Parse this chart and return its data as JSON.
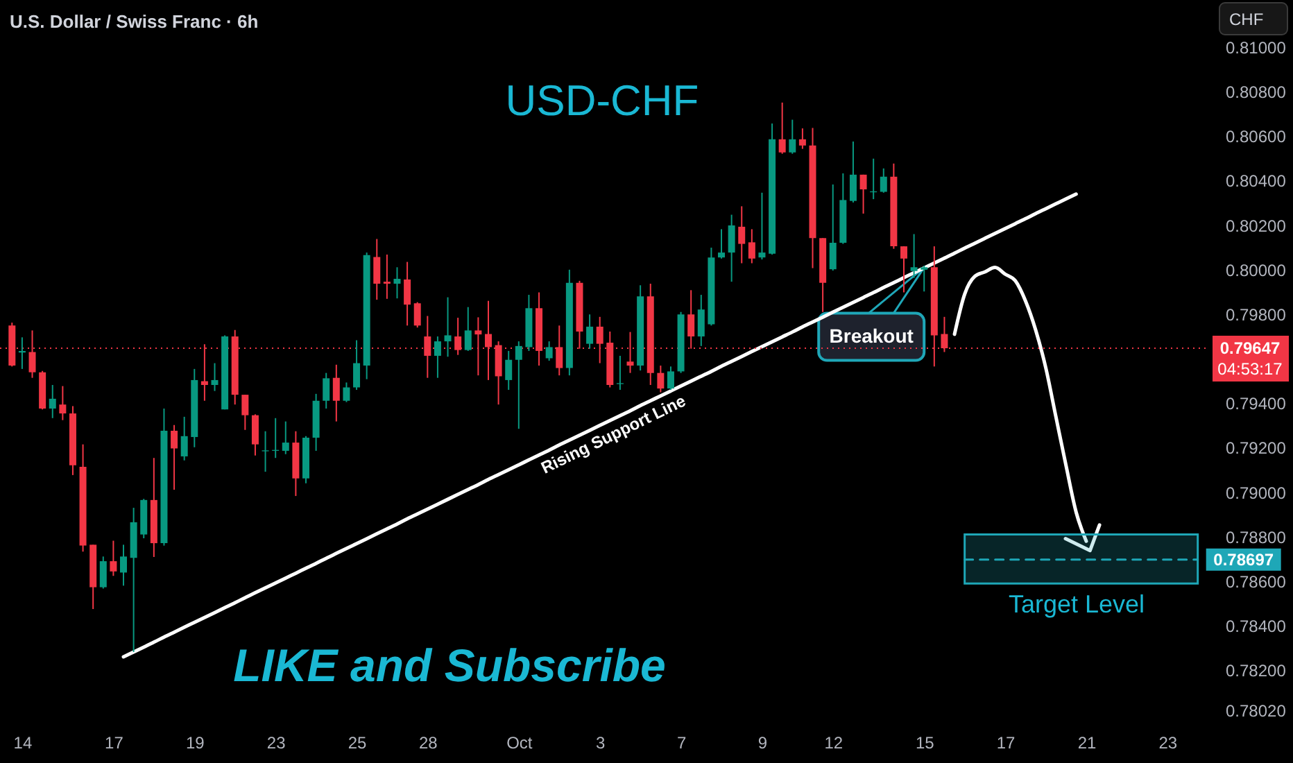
{
  "chart_data": {
    "type": "candlestick",
    "title": "USD-CHF",
    "subtitle": "U.S. Dollar / Swiss Franc · 6h",
    "ylabel": "CHF",
    "categories": [
      null,
      "14",
      null,
      null,
      null,
      null,
      null,
      null,
      null,
      null,
      "17",
      null,
      null,
      null,
      null,
      null,
      null,
      null,
      "19",
      null,
      null,
      null,
      null,
      null,
      null,
      null,
      "23",
      null,
      null,
      null,
      null,
      null,
      null,
      null,
      "25",
      null,
      null,
      null,
      null,
      null,
      null,
      "28",
      null,
      null,
      null,
      null,
      null,
      null,
      null,
      null,
      "Oct",
      null,
      null,
      null,
      null,
      null,
      null,
      null,
      "3",
      null,
      null,
      null,
      null,
      null,
      null,
      null,
      "7",
      null,
      null,
      null,
      null,
      null,
      null,
      null,
      "9",
      null,
      null,
      null,
      null,
      null,
      null,
      "12",
      null,
      null,
      null,
      null,
      null,
      null,
      null,
      null,
      "15",
      null,
      null,
      null,
      null,
      null,
      null,
      null,
      "17",
      null,
      null,
      null,
      null,
      null,
      null,
      null,
      "21",
      null,
      null,
      null,
      null,
      null,
      null,
      null,
      "23",
      null,
      null,
      null
    ],
    "ohlc": [
      [
        0.79749,
        0.79762,
        0.79565,
        0.79569
      ],
      [
        0.79628,
        0.79696,
        0.79554,
        0.79635
      ],
      [
        0.7963,
        0.79727,
        0.79514,
        0.79539
      ],
      [
        0.79539,
        0.79545,
        0.79372,
        0.79376
      ],
      [
        0.79376,
        0.79482,
        0.79333,
        0.7942
      ],
      [
        0.79394,
        0.79477,
        0.79324,
        0.79354
      ],
      [
        0.79354,
        0.79387,
        0.79077,
        0.79121
      ],
      [
        0.79114,
        0.79215,
        0.78733,
        0.7876
      ],
      [
        0.78764,
        0.78764,
        0.78475,
        0.78573
      ],
      [
        0.78573,
        0.78711,
        0.78567,
        0.7869
      ],
      [
        0.7869,
        0.78782,
        0.78624,
        0.78644
      ],
      [
        0.78639,
        0.78764,
        0.7858,
        0.78711
      ],
      [
        0.78705,
        0.7893,
        0.78282,
        0.78865
      ],
      [
        0.7881,
        0.7897,
        0.78793,
        0.78965
      ],
      [
        0.78965,
        0.79154,
        0.78709,
        0.78771
      ],
      [
        0.78771,
        0.79376,
        0.7876,
        0.79276
      ],
      [
        0.79276,
        0.79302,
        0.79011,
        0.79197
      ],
      [
        0.79161,
        0.79339,
        0.79143,
        0.79252
      ],
      [
        0.79248,
        0.79554,
        0.79202,
        0.79504
      ],
      [
        0.79499,
        0.79665,
        0.79411,
        0.79482
      ],
      [
        0.79482,
        0.7958,
        0.79455,
        0.79504
      ],
      [
        0.79372,
        0.79705,
        0.79372,
        0.797
      ],
      [
        0.797,
        0.79729,
        0.79394,
        0.79438
      ],
      [
        0.79438,
        0.79438,
        0.7928,
        0.79346
      ],
      [
        0.79346,
        0.7935,
        0.79165,
        0.79215
      ],
      [
        0.79184,
        0.79274,
        0.79092,
        0.79188
      ],
      [
        0.79186,
        0.79333,
        0.79154,
        0.7919
      ],
      [
        0.79186,
        0.79318,
        0.79171,
        0.79223
      ],
      [
        0.79223,
        0.79274,
        0.78983,
        0.79062
      ],
      [
        0.79062,
        0.79252,
        0.7904,
        0.79245
      ],
      [
        0.79245,
        0.79442,
        0.79186,
        0.79411
      ],
      [
        0.79411,
        0.79536,
        0.79376,
        0.79512
      ],
      [
        0.79514,
        0.79573,
        0.79318,
        0.79411
      ],
      [
        0.79411,
        0.79493,
        0.79405,
        0.79471
      ],
      [
        0.79471,
        0.79683,
        0.7946,
        0.7958
      ],
      [
        0.79569,
        0.80077,
        0.79508,
        0.80066
      ],
      [
        0.80057,
        0.80138,
        0.79865,
        0.79937
      ],
      [
        0.79946,
        0.80068,
        0.79869,
        0.79937
      ],
      [
        0.79937,
        0.80011,
        0.79871,
        0.79959
      ],
      [
        0.79956,
        0.80035,
        0.79749,
        0.79843
      ],
      [
        0.79849,
        0.79854,
        0.7974,
        0.79749
      ],
      [
        0.797,
        0.79792,
        0.79514,
        0.79613
      ],
      [
        0.79613,
        0.797,
        0.79514,
        0.79678
      ],
      [
        0.79678,
        0.79876,
        0.79609,
        0.79705
      ],
      [
        0.797,
        0.79784,
        0.79617,
        0.79639
      ],
      [
        0.79639,
        0.79832,
        0.79635,
        0.79727
      ],
      [
        0.79727,
        0.79786,
        0.79525,
        0.79709
      ],
      [
        0.79711,
        0.7986,
        0.79504,
        0.79652
      ],
      [
        0.79661,
        0.79678,
        0.79394,
        0.79521
      ],
      [
        0.79504,
        0.79635,
        0.7946,
        0.79595
      ],
      [
        0.79595,
        0.79678,
        0.79285,
        0.79657
      ],
      [
        0.79652,
        0.79887,
        0.79635,
        0.79827
      ],
      [
        0.79827,
        0.79898,
        0.79569,
        0.79635
      ],
      [
        0.79602,
        0.79678,
        0.79591,
        0.79652
      ],
      [
        0.79652,
        0.79749,
        0.79525,
        0.79558
      ],
      [
        0.79558,
        0.8,
        0.79525,
        0.79941
      ],
      [
        0.79941,
        0.7995,
        0.79645,
        0.79722
      ],
      [
        0.79667,
        0.79799,
        0.79645,
        0.79744
      ],
      [
        0.79744,
        0.79788,
        0.7958,
        0.79667
      ],
      [
        0.79672,
        0.79722,
        0.79471,
        0.79482
      ],
      [
        0.79486,
        0.79613,
        0.7946,
        0.7949
      ],
      [
        0.79587,
        0.7972,
        0.79536,
        0.79569
      ],
      [
        0.79569,
        0.7993,
        0.79547,
        0.7988
      ],
      [
        0.7988,
        0.79937,
        0.79482,
        0.79536
      ],
      [
        0.79536,
        0.79569,
        0.79449,
        0.79466
      ],
      [
        0.79466,
        0.79565,
        0.7946,
        0.79543
      ],
      [
        0.79543,
        0.7981,
        0.79536,
        0.79799
      ],
      [
        0.79799,
        0.79908,
        0.79645,
        0.797
      ],
      [
        0.797,
        0.79887,
        0.79657,
        0.79821
      ],
      [
        0.79755,
        0.80099,
        0.79749,
        0.80055
      ],
      [
        0.80055,
        0.80182,
        0.8005,
        0.80077
      ],
      [
        0.80077,
        0.80247,
        0.79946,
        0.80199
      ],
      [
        0.80193,
        0.80285,
        0.80029,
        0.80116
      ],
      [
        0.80123,
        0.80182,
        0.80029,
        0.8005
      ],
      [
        0.80055,
        0.80346,
        0.80046,
        0.80077
      ],
      [
        0.80072,
        0.80657,
        0.80068,
        0.80586
      ],
      [
        0.80586,
        0.80751,
        0.80521,
        0.80527
      ],
      [
        0.80527,
        0.80674,
        0.80521,
        0.80586
      ],
      [
        0.80586,
        0.80635,
        0.80543,
        0.80558
      ],
      [
        0.80558,
        0.80637,
        0.80007,
        0.80142
      ],
      [
        0.80142,
        0.80142,
        0.7981,
        0.79941
      ],
      [
        0.80002,
        0.80383,
        0.79996,
        0.80121
      ],
      [
        0.80121,
        0.80433,
        0.80116,
        0.80313
      ],
      [
        0.80309,
        0.80576,
        0.80302,
        0.80427
      ],
      [
        0.80427,
        0.80427,
        0.80252,
        0.80361
      ],
      [
        0.80348,
        0.80499,
        0.80317,
        0.80352
      ],
      [
        0.8035,
        0.80455,
        0.80346,
        0.80418
      ],
      [
        0.80418,
        0.80477,
        0.80094,
        0.80105
      ],
      [
        0.80105,
        0.80105,
        0.79898,
        0.8005
      ],
      [
        0.79994,
        0.8016,
        0.79963,
        0.80011
      ],
      [
        0.8,
        0.80018,
        0.79902,
        0.80011
      ],
      [
        0.80011,
        0.80105,
        0.79565,
        0.79705
      ],
      [
        0.79711,
        0.79788,
        0.7963,
        0.79647
      ],
      null,
      null,
      null,
      null,
      null,
      null,
      null,
      null,
      null,
      null,
      null,
      null,
      null,
      null,
      null,
      null,
      null,
      null,
      null,
      null,
      null,
      null,
      null,
      null,
      null
    ],
    "colors": [
      "#f23645",
      "#089981",
      "#f23645",
      "#f23645",
      "#089981",
      "#f23645",
      "#f23645",
      "#f23645",
      "#f23645",
      "#089981",
      "#f23645",
      "#089981",
      "#089981",
      "#089981",
      "#f23645",
      "#089981",
      "#f23645",
      "#089981",
      "#089981",
      "#f23645",
      "#089981",
      "#089981",
      "#f23645",
      "#f23645",
      "#f23645",
      "#089981",
      "#089981",
      "#089981",
      "#f23645",
      "#089981",
      "#089981",
      "#089981",
      "#f23645",
      "#089981",
      "#089981",
      "#089981",
      "#f23645",
      "#f23645",
      "#089981",
      "#f23645",
      "#f23645",
      "#f23645",
      "#089981",
      "#089981",
      "#f23645",
      "#089981",
      "#f23645",
      "#f23645",
      "#f23645",
      "#089981",
      "#089981",
      "#089981",
      "#f23645",
      "#089981",
      "#f23645",
      "#089981",
      "#f23645",
      "#089981",
      "#f23645",
      "#f23645",
      "#089981",
      "#f23645",
      "#089981",
      "#f23645",
      "#f23645",
      "#089981",
      "#089981",
      "#f23645",
      "#089981",
      "#089981",
      "#089981",
      "#089981",
      "#f23645",
      "#f23645",
      "#089981",
      "#089981",
      "#f23645",
      "#089981",
      "#f23645",
      "#f23645",
      "#f23645",
      "#089981",
      "#089981",
      "#089981",
      "#f23645",
      "#089981",
      "#089981",
      "#f23645",
      "#f23645",
      "#089981",
      "#089981",
      "#f23645",
      "#f23645",
      null,
      null,
      null,
      null,
      null,
      null,
      null,
      null,
      null,
      null,
      null,
      null,
      null,
      null,
      null,
      null,
      null,
      null,
      null,
      null,
      null,
      null,
      null,
      null,
      null
    ],
    "series": [
      {
        "type": "line",
        "color": "#ffffff",
        "values": [
          null,
          null,
          null,
          null,
          null,
          null,
          null,
          null,
          null,
          null,
          null,
          0.7826,
          0.78282,
          0.78304,
          0.78326,
          0.78349,
          0.78371,
          0.78393,
          0.78415,
          0.78437,
          0.78459,
          0.78481,
          0.78503,
          0.78526,
          0.78548,
          0.7857,
          0.78592,
          0.78614,
          0.78636,
          0.78658,
          0.7868,
          0.78703,
          0.78725,
          0.78747,
          0.78769,
          0.78791,
          0.78813,
          0.78835,
          0.78857,
          0.7888,
          0.78902,
          0.78924,
          0.78946,
          0.78968,
          0.7899,
          0.79012,
          0.79034,
          0.79057,
          0.79079,
          0.79101,
          0.79123,
          0.79145,
          0.79167,
          0.79189,
          0.79212,
          0.79234,
          0.79256,
          0.79278,
          0.793,
          0.79322,
          0.79344,
          0.79366,
          0.79389,
          0.79411,
          0.79433,
          0.79455,
          0.79477,
          0.79499,
          0.79521,
          0.79543,
          0.79566,
          0.79588,
          0.7961,
          0.79632,
          0.79654,
          0.79676,
          0.79698,
          0.7972,
          0.79743,
          0.79765,
          0.79787,
          0.79809,
          0.79831,
          0.79853,
          0.79875,
          0.79897,
          0.7992,
          0.79942,
          0.79964,
          0.79986,
          0.80008,
          0.8003,
          0.80052,
          0.80074,
          0.80097,
          0.80119,
          0.80141,
          0.80163,
          0.80185,
          0.80207,
          0.80229,
          0.80252,
          0.80274,
          0.80296,
          0.80318,
          0.8034,
          null,
          null,
          null,
          null,
          null,
          null,
          null,
          null,
          null,
          null,
          null,
          null
        ]
      },
      {
        "type": "line",
        "color": "#ffffff",
        "values": [
          null,
          null,
          null,
          null,
          null,
          null,
          null,
          null,
          null,
          null,
          null,
          null,
          null,
          null,
          null,
          null,
          null,
          null,
          null,
          null,
          null,
          null,
          null,
          null,
          null,
          null,
          null,
          null,
          null,
          null,
          null,
          null,
          null,
          null,
          null,
          null,
          null,
          null,
          null,
          null,
          null,
          null,
          null,
          null,
          null,
          null,
          null,
          null,
          null,
          null,
          null,
          null,
          null,
          null,
          null,
          null,
          null,
          null,
          null,
          null,
          null,
          null,
          null,
          null,
          null,
          null,
          null,
          null,
          null,
          null,
          null,
          null,
          null,
          null,
          null,
          null,
          null,
          null,
          null,
          null,
          null,
          null,
          null,
          null,
          null,
          null,
          null,
          null,
          null,
          null,
          null,
          null,
          null,
          0.7971,
          0.7989,
          0.7997,
          0.7999,
          0.8001,
          0.7998,
          0.7995,
          0.7986,
          0.7973,
          0.7956,
          0.7934,
          0.7912,
          0.7891,
          0.7878,
          null,
          null,
          null,
          null,
          null,
          null,
          null,
          null,
          null,
          null,
          null
        ]
      },
      {
        "type": "line",
        "color": "#1ea7b7",
        "line_style": "dashed",
        "values": [
          null,
          null,
          null,
          null,
          null,
          null,
          null,
          null,
          null,
          null,
          null,
          null,
          null,
          null,
          null,
          null,
          null,
          null,
          null,
          null,
          null,
          null,
          null,
          null,
          null,
          null,
          null,
          null,
          null,
          null,
          null,
          null,
          null,
          null,
          null,
          null,
          null,
          null,
          null,
          null,
          null,
          null,
          null,
          null,
          null,
          null,
          null,
          null,
          null,
          null,
          null,
          null,
          null,
          null,
          null,
          null,
          null,
          null,
          null,
          null,
          null,
          null,
          null,
          null,
          null,
          null,
          null,
          null,
          null,
          null,
          null,
          null,
          null,
          null,
          null,
          null,
          null,
          null,
          null,
          null,
          null,
          null,
          null,
          null,
          null,
          null,
          null,
          null,
          null,
          null,
          null,
          null,
          null,
          null,
          0.78697,
          0.78697,
          0.78697,
          0.78697,
          0.78697,
          0.78697,
          0.78697,
          0.78697,
          0.78697,
          0.78697,
          0.78697,
          0.78697,
          0.78697,
          0.78697,
          0.78697,
          0.78697,
          0.78697,
          0.78697,
          0.78697,
          0.78697,
          0.78697,
          0.78697,
          0.78697,
          0.78697
        ],
        "lower": [
          null,
          null,
          null,
          null,
          null,
          null,
          null,
          null,
          null,
          null,
          null,
          null,
          null,
          null,
          null,
          null,
          null,
          null,
          null,
          null,
          null,
          null,
          null,
          null,
          null,
          null,
          null,
          null,
          null,
          null,
          null,
          null,
          null,
          null,
          null,
          null,
          null,
          null,
          null,
          null,
          null,
          null,
          null,
          null,
          null,
          null,
          null,
          null,
          null,
          null,
          null,
          null,
          null,
          null,
          null,
          null,
          null,
          null,
          null,
          null,
          null,
          null,
          null,
          null,
          null,
          null,
          null,
          null,
          null,
          null,
          null,
          null,
          null,
          null,
          null,
          null,
          null,
          null,
          null,
          null,
          null,
          null,
          null,
          null,
          null,
          null,
          null,
          null,
          null,
          null,
          null,
          null,
          null,
          null,
          0.7859,
          0.7859,
          0.7859,
          0.7859,
          0.7859,
          0.7859,
          0.7859,
          0.7859,
          0.7859,
          0.7859,
          0.7859,
          0.7859,
          0.7859,
          0.7859,
          0.7859,
          0.7859,
          0.7859,
          0.7859,
          0.7859,
          0.7859,
          0.7859,
          0.7859,
          0.7859,
          0.7859
        ],
        "upper": [
          null,
          null,
          null,
          null,
          null,
          null,
          null,
          null,
          null,
          null,
          null,
          null,
          null,
          null,
          null,
          null,
          null,
          null,
          null,
          null,
          null,
          null,
          null,
          null,
          null,
          null,
          null,
          null,
          null,
          null,
          null,
          null,
          null,
          null,
          null,
          null,
          null,
          null,
          null,
          null,
          null,
          null,
          null,
          null,
          null,
          null,
          null,
          null,
          null,
          null,
          null,
          null,
          null,
          null,
          null,
          null,
          null,
          null,
          null,
          null,
          null,
          null,
          null,
          null,
          null,
          null,
          null,
          null,
          null,
          null,
          null,
          null,
          null,
          null,
          null,
          null,
          null,
          null,
          null,
          null,
          null,
          null,
          null,
          null,
          null,
          null,
          null,
          null,
          null,
          null,
          null,
          null,
          null,
          null,
          0.7881,
          0.7881,
          0.7881,
          0.7881,
          0.7881,
          0.7881,
          0.7881,
          0.7881,
          0.7881,
          0.7881,
          0.7881,
          0.7881,
          0.7881,
          0.7881,
          0.7881,
          0.7881,
          0.7881,
          0.7881,
          0.7881,
          0.7881,
          0.7881,
          0.7881,
          0.7881,
          0.7881
        ],
        "value_labels": [
          null,
          null,
          null,
          null,
          null,
          null,
          null,
          null,
          null,
          null,
          null,
          null,
          null,
          null,
          null,
          null,
          null,
          null,
          null,
          null,
          null,
          null,
          null,
          null,
          null,
          null,
          null,
          null,
          null,
          null,
          null,
          null,
          null,
          null,
          null,
          null,
          null,
          null,
          null,
          null,
          null,
          null,
          null,
          null,
          null,
          null,
          null,
          null,
          null,
          null,
          null,
          null,
          null,
          null,
          null,
          null,
          null,
          null,
          null,
          null,
          null,
          null,
          null,
          null,
          null,
          null,
          null,
          null,
          null,
          null,
          null,
          null,
          null,
          null,
          null,
          null,
          null,
          null,
          null,
          null,
          null,
          null,
          null,
          null,
          null,
          null,
          null,
          null,
          null,
          null,
          null,
          null,
          null,
          null,
          null,
          null,
          null,
          null,
          null,
          null,
          null,
          null,
          null,
          null,
          null,
          null,
          null,
          null,
          null,
          null,
          null,
          null,
          null,
          null,
          null,
          null,
          null,
          "0.78697"
        ]
      }
    ],
    "ylim": [
      0.7802,
      0.81
    ],
    "yticks": [
      {
        "value": 0.81,
        "label": "0.81000"
      },
      {
        "value": 0.808,
        "label": "0.80800"
      },
      {
        "value": 0.806,
        "label": "0.80600"
      },
      {
        "value": 0.804,
        "label": "0.80400"
      },
      {
        "value": 0.802,
        "label": "0.80200"
      },
      {
        "value": 0.8,
        "label": "0.80000"
      },
      {
        "value": 0.798,
        "label": "0.79800"
      },
      {
        "value": 0.794,
        "label": "0.79400"
      },
      {
        "value": 0.792,
        "label": "0.79200"
      },
      {
        "value": 0.79,
        "label": "0.79000"
      },
      {
        "value": 0.788,
        "label": "0.78800"
      },
      {
        "value": 0.786,
        "label": "0.78600"
      },
      {
        "value": 0.784,
        "label": "0.78400"
      },
      {
        "value": 0.782,
        "label": "0.78200"
      },
      {
        "value": 0.7802,
        "label": "0.78020"
      }
    ],
    "ref_lines": [
      {
        "axis": "y",
        "value": 0.79647,
        "label": "0.79647\n04:53:17",
        "color": "#f23645",
        "line_style": "dotted"
      }
    ],
    "annotations": [
      "LIKE and Subscribe",
      {
        "text": "Rising Support Line",
        "x": "3",
        "y": 0.793
      },
      {
        "text": "Breakout",
        "x": "15",
        "y": 0.8001
      },
      {
        "text": "Target Level",
        "x": "21",
        "y": 0.7859
      }
    ]
  }
}
